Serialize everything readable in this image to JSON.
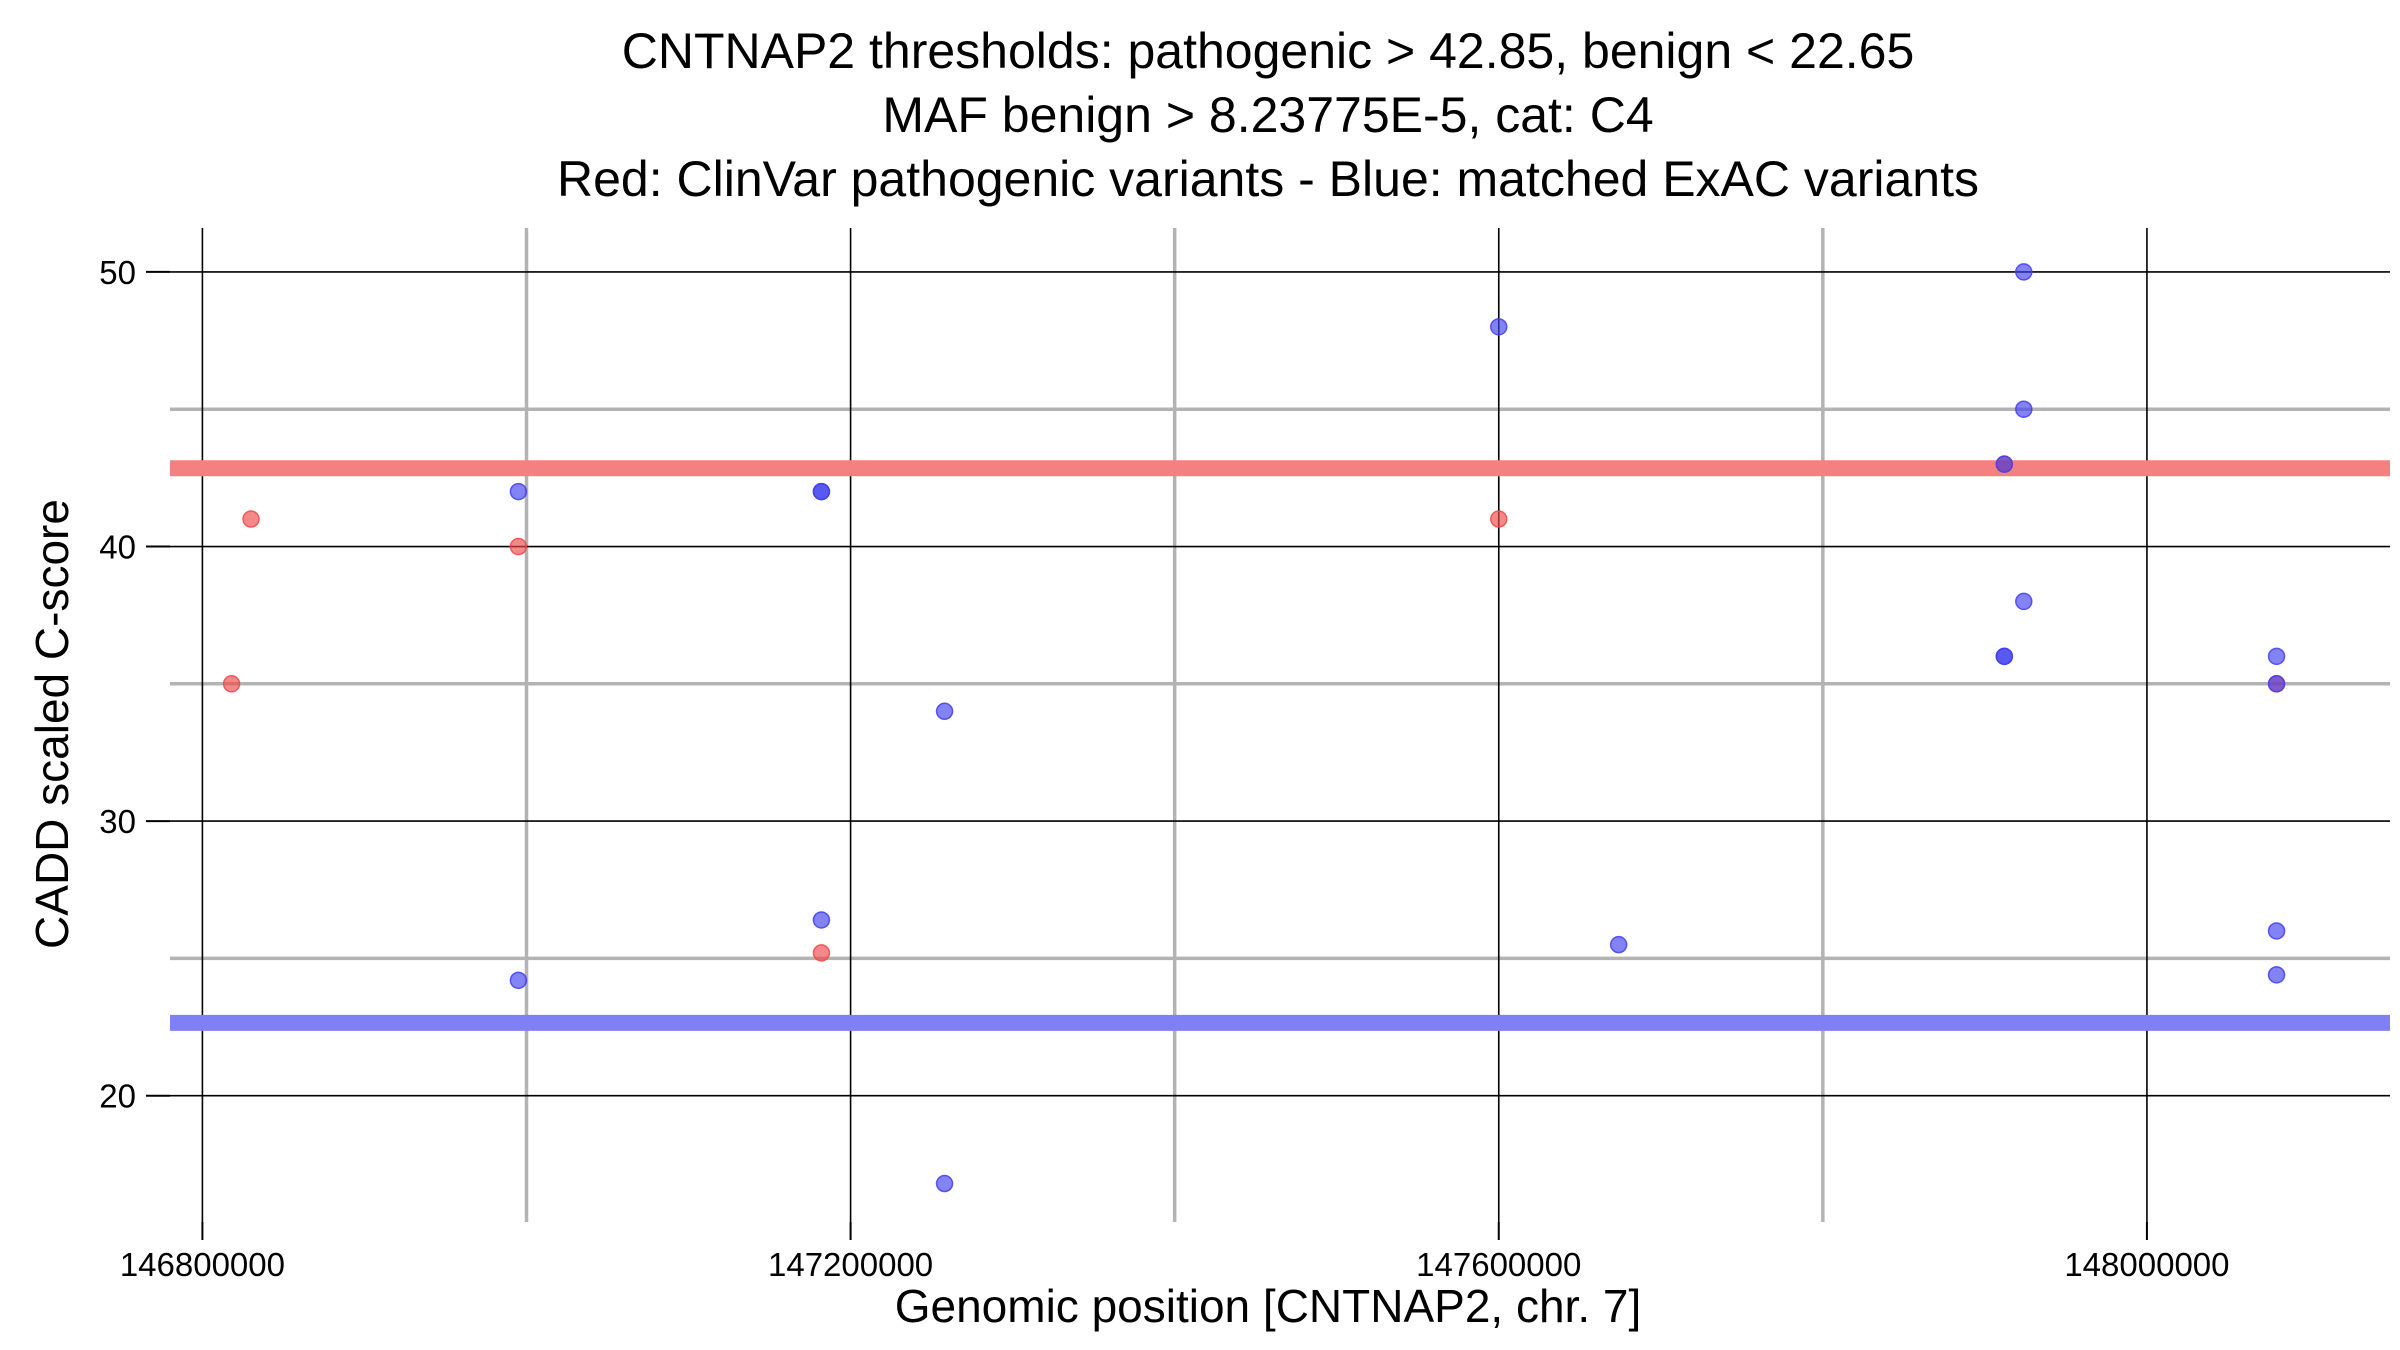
{
  "chart_data": {
    "type": "scatter",
    "title_lines": [
      "CNTNAP2 thresholds: pathogenic > 42.85, benign < 22.65",
      "MAF benign > 8.23775E-5, cat: C4",
      "Red: ClinVar pathogenic variants - Blue: matched ExAC variants"
    ],
    "xlabel": "Genomic position [CNTNAP2, chr. 7]",
    "ylabel": "CADD scaled C-score",
    "xlim": [
      146780000,
      148150000
    ],
    "ylim": [
      15.4,
      51.6
    ],
    "x_major_ticks": [
      146800000,
      147200000,
      147600000,
      148000000
    ],
    "x_minor_gridlines": [
      147000000,
      147400000,
      147800000
    ],
    "y_major_ticks": [
      20,
      30,
      40,
      50
    ],
    "y_minor_gridlines": [
      25,
      35,
      45
    ],
    "thresholds": [
      {
        "name": "pathogenic",
        "value": 42.85,
        "color": "#f48080"
      },
      {
        "name": "benign",
        "value": 22.65,
        "color": "#8080f5"
      }
    ],
    "series": [
      {
        "name": "ClinVar pathogenic variants",
        "color": "#f04848",
        "points": [
          {
            "x": 146818000,
            "y": 35.0
          },
          {
            "x": 146830000,
            "y": 41.0
          },
          {
            "x": 146995000,
            "y": 40.0
          },
          {
            "x": 147182000,
            "y": 25.2
          },
          {
            "x": 147600000,
            "y": 41.0
          },
          {
            "x": 147912000,
            "y": 43.0
          },
          {
            "x": 148080000,
            "y": 35.0
          }
        ]
      },
      {
        "name": "matched ExAC variants",
        "color": "#4040f0",
        "points": [
          {
            "x": 146995000,
            "y": 42.0
          },
          {
            "x": 146995000,
            "y": 24.2
          },
          {
            "x": 147182000,
            "y": 42.0
          },
          {
            "x": 147182000,
            "y": 42.0
          },
          {
            "x": 147182000,
            "y": 26.4
          },
          {
            "x": 147258000,
            "y": 34.0
          },
          {
            "x": 147258000,
            "y": 16.8
          },
          {
            "x": 147600000,
            "y": 48.0
          },
          {
            "x": 147674000,
            "y": 25.5
          },
          {
            "x": 147912000,
            "y": 43.0
          },
          {
            "x": 147912000,
            "y": 36.0
          },
          {
            "x": 147912000,
            "y": 36.0
          },
          {
            "x": 147924000,
            "y": 50.0
          },
          {
            "x": 147924000,
            "y": 45.0
          },
          {
            "x": 147924000,
            "y": 38.0
          },
          {
            "x": 148080000,
            "y": 36.0
          },
          {
            "x": 148080000,
            "y": 35.0
          },
          {
            "x": 148080000,
            "y": 26.0
          },
          {
            "x": 148080000,
            "y": 24.4
          }
        ]
      }
    ]
  }
}
